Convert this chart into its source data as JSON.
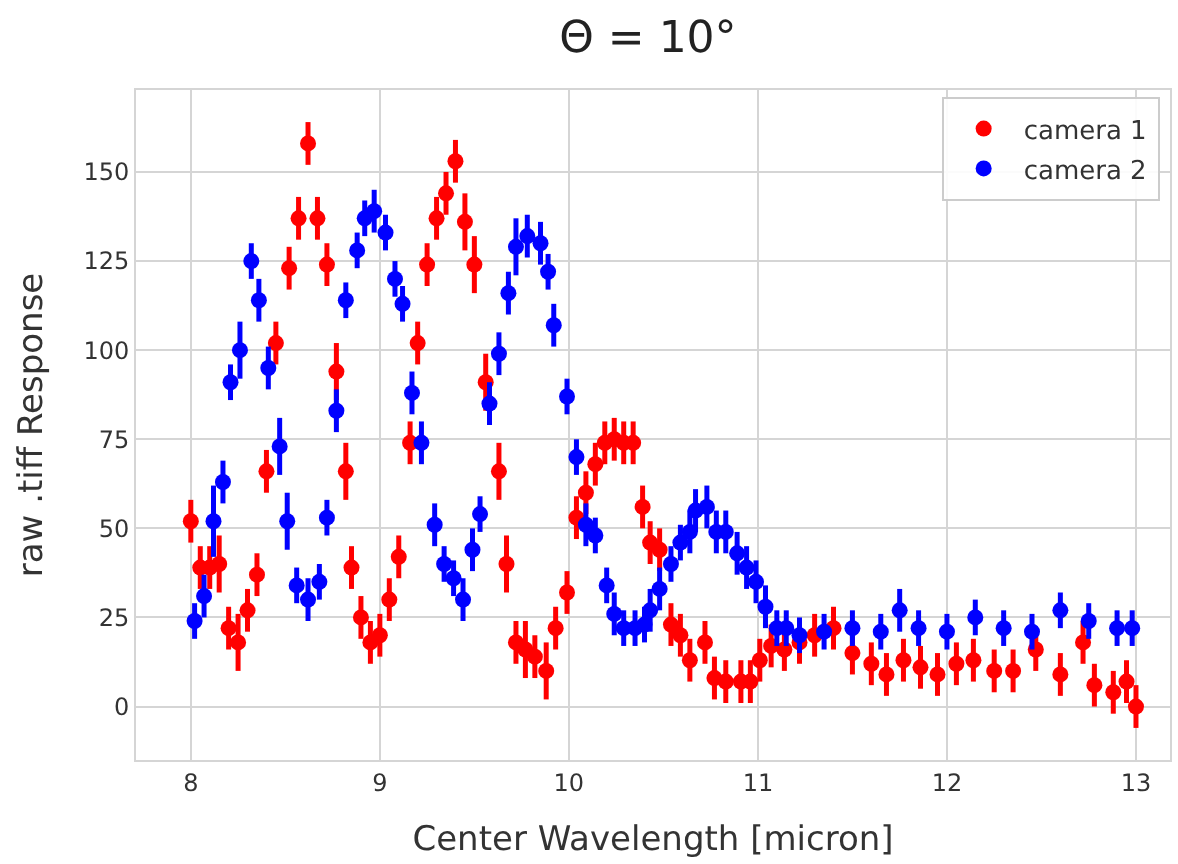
{
  "chart_data": {
    "type": "scatter",
    "title": "Θ = 10°",
    "xlabel": "Center Wavelength [micron]",
    "ylabel": "raw .tiff Response",
    "xlim": [
      7.71,
      13.18
    ],
    "ylim": [
      -15,
      173
    ],
    "xticks": [
      8,
      9,
      10,
      11,
      12,
      13
    ],
    "yticks": [
      0,
      25,
      50,
      75,
      100,
      125,
      150
    ],
    "grid": true,
    "legend": "top right",
    "marker": "circle",
    "series": [
      {
        "name": "camera 1",
        "color": "#ff0000",
        "x": [
          8.0,
          8.05,
          8.1,
          8.15,
          8.2,
          8.25,
          8.3,
          8.35,
          8.4,
          8.45,
          8.52,
          8.57,
          8.62,
          8.67,
          8.72,
          8.77,
          8.82,
          8.85,
          8.9,
          8.95,
          9.0,
          9.05,
          9.1,
          9.16,
          9.2,
          9.25,
          9.3,
          9.35,
          9.4,
          9.45,
          9.5,
          9.56,
          9.63,
          9.67,
          9.72,
          9.77,
          9.82,
          9.88,
          9.93,
          9.99,
          10.04,
          10.09,
          10.14,
          10.19,
          10.24,
          10.29,
          10.34,
          10.39,
          10.43,
          10.48,
          10.54,
          10.59,
          10.64,
          10.72,
          10.77,
          10.83,
          10.91,
          10.96,
          11.01,
          11.07,
          11.14,
          11.22,
          11.3,
          11.4,
          11.5,
          11.6,
          11.68,
          11.77,
          11.86,
          11.95,
          12.05,
          12.14,
          12.25,
          12.35,
          12.47,
          12.6,
          12.72,
          12.78,
          12.88,
          12.95,
          13.0
        ],
        "values": [
          52,
          39,
          39,
          40,
          22,
          18,
          27,
          37,
          66,
          102,
          123,
          137,
          158,
          137,
          124,
          94,
          66,
          39,
          25,
          18,
          20,
          30,
          42,
          74,
          102,
          124,
          137,
          144,
          153,
          136,
          124,
          91,
          66,
          40,
          18,
          16,
          14,
          10,
          22,
          32,
          53,
          60,
          68,
          74,
          75,
          74,
          74,
          56,
          46,
          44,
          23,
          20,
          13,
          18,
          8,
          7,
          7,
          7,
          13,
          17,
          16,
          18,
          20,
          22,
          15,
          12,
          9,
          13,
          11,
          9,
          12,
          13,
          10,
          10,
          16,
          9,
          18,
          6,
          4,
          7,
          0
        ],
        "errors": [
          6,
          6,
          6,
          8,
          6,
          8,
          6,
          6,
          6,
          6,
          6,
          6,
          6,
          6,
          6,
          8,
          8,
          6,
          6,
          6,
          6,
          6,
          6,
          6,
          6,
          6,
          6,
          6,
          6,
          8,
          8,
          8,
          8,
          8,
          6,
          8,
          6,
          8,
          6,
          6,
          6,
          6,
          6,
          6,
          6,
          6,
          6,
          6,
          6,
          6,
          6,
          6,
          6,
          6,
          6,
          6,
          6,
          6,
          6,
          6,
          6,
          6,
          6,
          6,
          6,
          6,
          6,
          6,
          6,
          6,
          6,
          6,
          6,
          6,
          6,
          6,
          6,
          6,
          6,
          6,
          6
        ]
      },
      {
        "name": "camera 2",
        "color": "#0000ff",
        "x": [
          8.02,
          8.07,
          8.12,
          8.17,
          8.21,
          8.26,
          8.32,
          8.36,
          8.41,
          8.47,
          8.51,
          8.56,
          8.62,
          8.68,
          8.72,
          8.77,
          8.82,
          8.88,
          8.92,
          8.97,
          9.03,
          9.08,
          9.12,
          9.17,
          9.22,
          9.29,
          9.34,
          9.39,
          9.44,
          9.49,
          9.53,
          9.58,
          9.63,
          9.68,
          9.72,
          9.78,
          9.85,
          9.89,
          9.92,
          9.99,
          10.04,
          10.09,
          10.14,
          10.2,
          10.24,
          10.29,
          10.35,
          10.4,
          10.43,
          10.48,
          10.54,
          10.59,
          10.64,
          10.67,
          10.73,
          10.78,
          10.83,
          10.89,
          10.94,
          10.99,
          11.04,
          11.1,
          11.15,
          11.22,
          11.35,
          11.5,
          11.65,
          11.75,
          11.85,
          12.0,
          12.15,
          12.3,
          12.45,
          12.6,
          12.75,
          12.9,
          12.98
        ],
        "values": [
          24,
          31,
          52,
          63,
          91,
          100,
          125,
          114,
          95,
          73,
          52,
          34,
          30,
          35,
          53,
          83,
          114,
          128,
          137,
          139,
          133,
          120,
          113,
          88,
          74,
          51,
          40,
          36,
          30,
          44,
          54,
          85,
          99,
          116,
          129,
          132,
          130,
          122,
          107,
          87,
          70,
          51,
          48,
          34,
          26,
          22,
          22,
          23,
          27,
          33,
          40,
          46,
          49,
          55,
          56,
          49,
          49,
          43,
          39,
          35,
          28,
          22,
          22,
          20,
          21,
          22,
          21,
          27,
          22,
          21,
          25,
          22,
          21,
          27,
          24,
          22,
          22
        ],
        "errors": [
          5,
          6,
          10,
          6,
          5,
          8,
          5,
          6,
          6,
          8,
          8,
          5,
          6,
          5,
          5,
          6,
          5,
          5,
          5,
          6,
          5,
          5,
          5,
          6,
          6,
          6,
          5,
          5,
          6,
          6,
          5,
          6,
          6,
          6,
          8,
          6,
          6,
          5,
          6,
          5,
          5,
          6,
          5,
          5,
          6,
          5,
          5,
          5,
          6,
          6,
          5,
          5,
          6,
          6,
          6,
          6,
          6,
          6,
          6,
          6,
          6,
          5,
          5,
          5,
          5,
          5,
          5,
          6,
          5,
          5,
          5,
          5,
          5,
          5,
          5,
          5,
          5
        ]
      }
    ]
  }
}
